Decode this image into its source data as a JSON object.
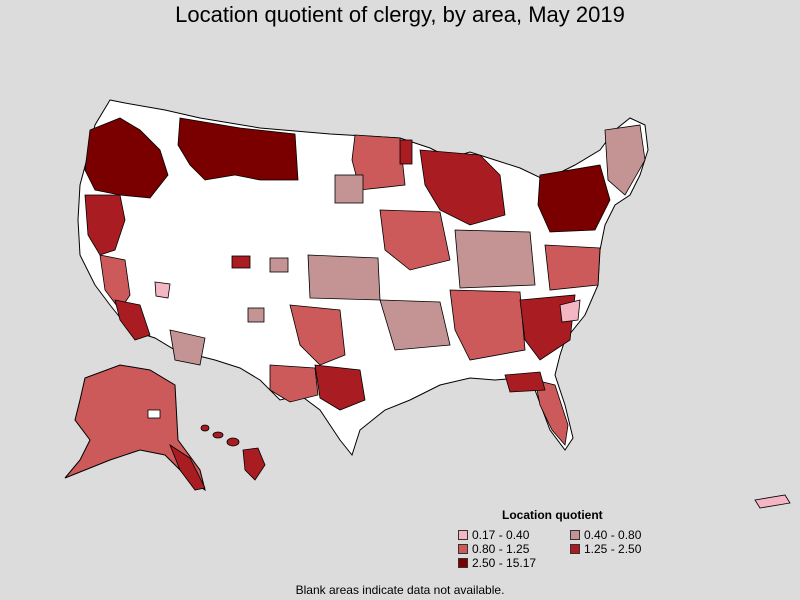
{
  "title": "Location quotient of clergy, by area, May 2019",
  "legend": {
    "title": "Location quotient",
    "entries": [
      {
        "label": "0.17 - 0.40",
        "color": "#f4b6c2"
      },
      {
        "label": "0.40 - 0.80",
        "color": "#c49494"
      },
      {
        "label": "0.80 - 1.25",
        "color": "#cc5a5a"
      },
      {
        "label": "1.25 - 2.50",
        "color": "#a81c22"
      },
      {
        "label": "2.50 - 15.17",
        "color": "#7a0000"
      }
    ]
  },
  "footnote": "Blank areas indicate data not available.",
  "colors": {
    "background": "#dcdcdc",
    "no_data": "#ffffff",
    "border": "#000000"
  }
}
